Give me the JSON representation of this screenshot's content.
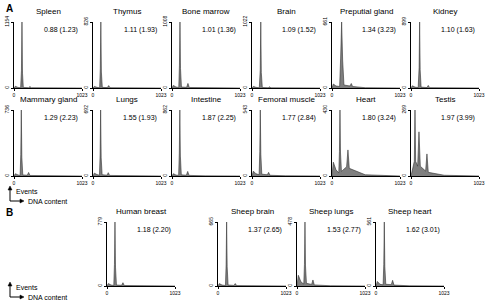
{
  "panel_labels": [
    "A",
    "B"
  ],
  "x_label": "DNA content",
  "y_label": "Events",
  "chart_data": [
    {
      "panel": "A",
      "type": "area",
      "title": "Spleen",
      "annotation": "0.88 (1.23)",
      "color": "#7f7f7f",
      "x": [
        0,
        20,
        60,
        100,
        112,
        120,
        128,
        140,
        220,
        240,
        260,
        500,
        1023
      ],
      "values": [
        0,
        30,
        10,
        5,
        300,
        1154,
        260,
        10,
        6,
        25,
        5,
        2,
        0
      ],
      "xlim": [
        0,
        1023
      ],
      "xticks": [
        0,
        1023
      ],
      "ylim": [
        0,
        1154
      ],
      "yticks": [
        0,
        1154
      ]
    },
    {
      "panel": "A",
      "type": "area",
      "title": "Thymus",
      "annotation": "1.11 (1.93)",
      "color": "#7f7f7f",
      "x": [
        0,
        20,
        60,
        100,
        110,
        118,
        126,
        140,
        216,
        236,
        256,
        500,
        1023
      ],
      "values": [
        0,
        20,
        8,
        4,
        240,
        826,
        200,
        8,
        5,
        30,
        4,
        1,
        0
      ],
      "xlim": [
        0,
        1023
      ],
      "xticks": [
        0,
        1023
      ],
      "ylim": [
        0,
        826
      ],
      "yticks": [
        0,
        826
      ]
    },
    {
      "panel": "A",
      "type": "area",
      "title": "Bone marrow",
      "annotation": "1.01 (1.36)",
      "color": "#7f7f7f",
      "x": [
        0,
        20,
        60,
        102,
        112,
        120,
        128,
        142,
        220,
        240,
        260,
        500,
        1023
      ],
      "values": [
        0,
        40,
        15,
        8,
        350,
        1008,
        300,
        15,
        10,
        70,
        8,
        2,
        0
      ],
      "xlim": [
        0,
        1023
      ],
      "xticks": [
        0,
        1023
      ],
      "ylim": [
        0,
        1008
      ],
      "yticks": [
        0,
        1008
      ]
    },
    {
      "panel": "A",
      "type": "area",
      "title": "Brain",
      "annotation": "1.09 (1.52)",
      "color": "#7f7f7f",
      "x": [
        0,
        20,
        60,
        110,
        124,
        132,
        140,
        155,
        244,
        264,
        284,
        500,
        1023
      ],
      "values": [
        0,
        25,
        10,
        5,
        280,
        1022,
        240,
        8,
        4,
        18,
        3,
        1,
        0
      ],
      "xlim": [
        0,
        1023
      ],
      "xticks": [
        0,
        1023
      ],
      "ylim": [
        0,
        1022
      ],
      "yticks": [
        0,
        1022
      ]
    },
    {
      "panel": "A",
      "type": "area",
      "title": "Preputial gland",
      "annotation": "1.34 (3.23)",
      "color": "#7f7f7f",
      "x": [
        0,
        20,
        60,
        115,
        130,
        145,
        160,
        180,
        270,
        290,
        310,
        500,
        1023
      ],
      "values": [
        0,
        40,
        20,
        15,
        300,
        661,
        280,
        30,
        20,
        45,
        15,
        3,
        0
      ],
      "xlim": [
        0,
        1023
      ],
      "xticks": [
        0,
        1023
      ],
      "ylim": [
        0,
        661
      ],
      "yticks": [
        0,
        661
      ]
    },
    {
      "panel": "A",
      "type": "area",
      "title": "Kidney",
      "annotation": "1.10 (1.63)",
      "color": "#7f7f7f",
      "x": [
        0,
        20,
        60,
        108,
        122,
        130,
        138,
        152,
        240,
        260,
        280,
        500,
        1023
      ],
      "values": [
        0,
        30,
        12,
        6,
        280,
        899,
        250,
        12,
        6,
        35,
        5,
        1,
        0
      ],
      "xlim": [
        0,
        1023
      ],
      "xticks": [
        0,
        1023
      ],
      "ylim": [
        0,
        899
      ],
      "yticks": [
        0,
        899
      ]
    },
    {
      "panel": "A",
      "type": "area",
      "title": "Mammary gland",
      "annotation": "1.29 (2.23)",
      "color": "#7f7f7f",
      "x": [
        0,
        20,
        60,
        92,
        102,
        110,
        118,
        132,
        200,
        220,
        240,
        500,
        1023
      ],
      "values": [
        0,
        25,
        12,
        6,
        240,
        736,
        210,
        12,
        8,
        40,
        6,
        2,
        0
      ],
      "xlim": [
        0,
        1023
      ],
      "xticks": [
        0,
        1023
      ],
      "ylim": [
        0,
        736
      ],
      "yticks": [
        0,
        736
      ]
    },
    {
      "panel": "A",
      "type": "area",
      "title": "Lungs",
      "annotation": "1.55 (1.93)",
      "color": "#7f7f7f",
      "x": [
        0,
        20,
        60,
        97,
        107,
        115,
        123,
        137,
        210,
        230,
        250,
        500,
        1023
      ],
      "values": [
        0,
        30,
        15,
        8,
        220,
        692,
        190,
        14,
        8,
        35,
        6,
        2,
        0
      ],
      "xlim": [
        0,
        1023
      ],
      "xticks": [
        0,
        1023
      ],
      "ylim": [
        0,
        692
      ],
      "yticks": [
        0,
        692
      ]
    },
    {
      "panel": "A",
      "type": "area",
      "title": "Intestine",
      "annotation": "1.87 (2.25)",
      "color": "#7f7f7f",
      "x": [
        0,
        20,
        60,
        100,
        110,
        118,
        126,
        140,
        216,
        236,
        256,
        500,
        1023
      ],
      "values": [
        0,
        30,
        12,
        8,
        300,
        862,
        260,
        15,
        10,
        60,
        8,
        2,
        0
      ],
      "xlim": [
        0,
        1023
      ],
      "xticks": [
        0,
        1023
      ],
      "ylim": [
        0,
        862
      ],
      "yticks": [
        0,
        862
      ]
    },
    {
      "panel": "A",
      "type": "area",
      "title": "Femoral muscle",
      "annotation": "1.77 (2.84)",
      "color": "#7f7f7f",
      "x": [
        0,
        20,
        60,
        107,
        117,
        125,
        133,
        147,
        230,
        250,
        270,
        500,
        1023
      ],
      "values": [
        0,
        40,
        18,
        10,
        200,
        543,
        180,
        15,
        10,
        30,
        6,
        2,
        0
      ],
      "xlim": [
        0,
        1023
      ],
      "xticks": [
        0,
        1023
      ],
      "ylim": [
        0,
        543
      ],
      "yticks": [
        0,
        543
      ]
    },
    {
      "panel": "A",
      "type": "area",
      "title": "Heart",
      "annotation": "1.80 (3.24)",
      "color": "#7f7f7f",
      "x": [
        0,
        20,
        60,
        102,
        112,
        120,
        128,
        142,
        220,
        240,
        260,
        500,
        1023
      ],
      "values": [
        0,
        90,
        40,
        20,
        160,
        430,
        150,
        30,
        60,
        170,
        50,
        8,
        0
      ],
      "xlim": [
        0,
        1023
      ],
      "xticks": [
        0,
        1023
      ],
      "ylim": [
        0,
        430
      ],
      "yticks": [
        0,
        430
      ]
    },
    {
      "panel": "A",
      "type": "area",
      "title": "Testis",
      "annotation": "1.97 (3.99)",
      "color": "#7f7f7f",
      "x": [
        0,
        20,
        50,
        60,
        70,
        100,
        120,
        140,
        220,
        240,
        260,
        500,
        1023
      ],
      "values": [
        0,
        30,
        60,
        269,
        60,
        40,
        180,
        40,
        20,
        90,
        15,
        3,
        0
      ],
      "xlim": [
        0,
        1023
      ],
      "xticks": [
        0,
        1023
      ],
      "ylim": [
        0,
        269
      ],
      "yticks": [
        0,
        269
      ]
    },
    {
      "panel": "B",
      "type": "area",
      "title": "Human breast",
      "annotation": "1.18 (2.20)",
      "color": "#7f7f7f",
      "x": [
        0,
        20,
        60,
        102,
        112,
        120,
        128,
        142,
        220,
        240,
        260,
        500,
        1023
      ],
      "values": [
        0,
        30,
        12,
        6,
        260,
        779,
        230,
        12,
        8,
        40,
        6,
        2,
        0
      ],
      "xlim": [
        0,
        1023
      ],
      "xticks": [
        0,
        1023
      ],
      "ylim": [
        0,
        779
      ],
      "yticks": [
        0,
        779
      ]
    },
    {
      "panel": "B",
      "type": "area",
      "title": "Sheep brain",
      "annotation": "1.37 (2.65)",
      "color": "#7f7f7f",
      "x": [
        0,
        20,
        60,
        112,
        122,
        130,
        138,
        152,
        240,
        260,
        280,
        500,
        1023
      ],
      "values": [
        0,
        25,
        10,
        5,
        220,
        665,
        200,
        10,
        6,
        25,
        4,
        1,
        0
      ],
      "xlim": [
        0,
        1023
      ],
      "xticks": [
        0,
        1023
      ],
      "ylim": [
        0,
        665
      ],
      "yticks": [
        0,
        665
      ]
    },
    {
      "panel": "B",
      "type": "area",
      "title": "Sheep lungs",
      "annotation": "1.53 (2.77)",
      "color": "#7f7f7f",
      "x": [
        0,
        20,
        60,
        102,
        112,
        120,
        128,
        142,
        220,
        240,
        260,
        500,
        1023
      ],
      "values": [
        0,
        80,
        30,
        15,
        160,
        478,
        150,
        20,
        12,
        45,
        8,
        2,
        0
      ],
      "xlim": [
        0,
        1023
      ],
      "xticks": [
        0,
        1023
      ],
      "ylim": [
        0,
        478
      ],
      "yticks": [
        0,
        478
      ]
    },
    {
      "panel": "B",
      "type": "area",
      "title": "Sheep heart",
      "annotation": "1.62 (3.01)",
      "color": "#7f7f7f",
      "x": [
        0,
        20,
        60,
        107,
        117,
        125,
        133,
        147,
        230,
        250,
        270,
        500,
        1023
      ],
      "values": [
        0,
        40,
        15,
        10,
        190,
        561,
        170,
        15,
        12,
        50,
        8,
        2,
        0
      ],
      "xlim": [
        0,
        1023
      ],
      "xticks": [
        0,
        1023
      ],
      "ylim": [
        0,
        561
      ],
      "yticks": [
        0,
        561
      ]
    }
  ]
}
